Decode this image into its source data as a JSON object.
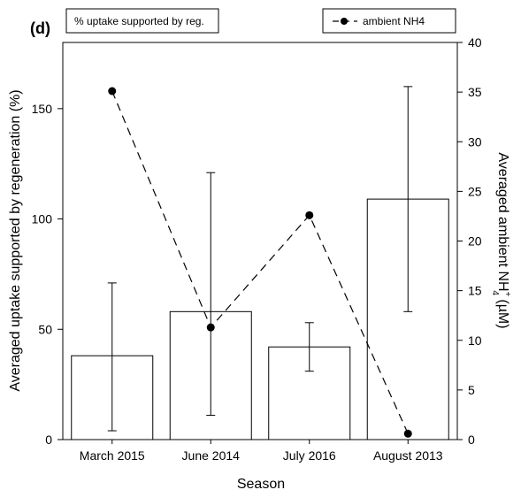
{
  "chart_data": {
    "type": "bar",
    "panel_label": "(d)",
    "xlabel": "Season",
    "ylabel_left": "Averaged uptake supported by regeneration (%)",
    "ylabel_right_main": "Averaged ambient NH",
    "ylabel_right_sup": "+",
    "ylabel_right_sub": "4",
    "ylabel_right_tail": " (µM)",
    "categories": [
      "March 2015",
      "June 2014",
      "July 2016",
      "August 2013"
    ],
    "ylim_left": [
      0,
      180
    ],
    "yticks_left": [
      0,
      50,
      100,
      150
    ],
    "ylim_right": [
      0,
      40
    ],
    "yticks_right": [
      0,
      5,
      10,
      15,
      20,
      25,
      30,
      35,
      40
    ],
    "series": [
      {
        "name": "% uptake supported by reg.",
        "kind": "bar",
        "axis": "left",
        "values": [
          38,
          58,
          42,
          109
        ],
        "error_low": [
          4,
          11,
          31,
          58
        ],
        "error_high": [
          71,
          121,
          53,
          160
        ]
      },
      {
        "name": "ambient NH4",
        "kind": "line",
        "axis": "right",
        "values": [
          35.1,
          11.3,
          22.6,
          0.6
        ]
      }
    ],
    "grid": false,
    "legend_placement": "top"
  }
}
